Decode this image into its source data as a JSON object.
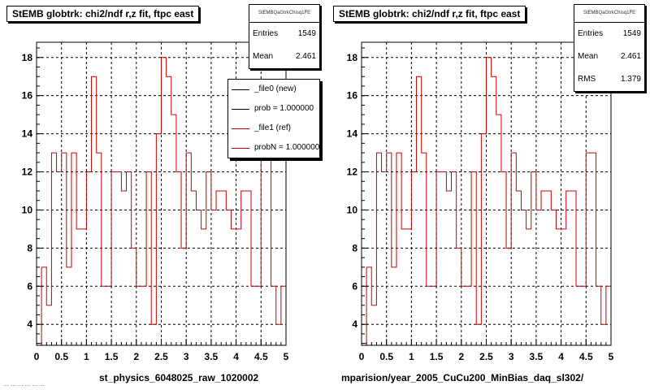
{
  "footer": "... ... ... ... ... ...",
  "chart_data": [
    {
      "type": "line",
      "title": "StEMB globtrk: chi2/ndf r,z fit, ftpc east",
      "xlabel": "st_physics_6048025_raw_1020002",
      "ylabel": "",
      "xlim": [
        0,
        5
      ],
      "ylim": [
        2.9,
        18.8
      ],
      "grid": true,
      "x_ticks": [
        "0",
        "0.5",
        "1",
        "1.5",
        "2",
        "2.5",
        "3",
        "3.5",
        "4",
        "4.5",
        "5"
      ],
      "y_ticks": [
        "4",
        "6",
        "8",
        "10",
        "12",
        "14",
        "16",
        "18"
      ],
      "bin_width": 0.1,
      "x": [
        0.0,
        0.1,
        0.2,
        0.3,
        0.4,
        0.5,
        0.6,
        0.7,
        0.8,
        0.9,
        1.0,
        1.1,
        1.2,
        1.3,
        1.4,
        1.5,
        1.6,
        1.7,
        1.8,
        1.9,
        2.0,
        2.1,
        2.2,
        2.3,
        2.4,
        2.5,
        2.6,
        2.7,
        2.8,
        2.9,
        3.0,
        3.1,
        3.2,
        3.3,
        3.4,
        3.5,
        3.6,
        3.7,
        3.8,
        3.9,
        4.0,
        4.1,
        4.2,
        4.3,
        4.4,
        4.5,
        4.6,
        4.7,
        4.8,
        4.9
      ],
      "series": [
        {
          "color": "#cc0000",
          "values": [
            3,
            7,
            5,
            13,
            12,
            13,
            7,
            13,
            9,
            9,
            12,
            17,
            13,
            6,
            6,
            12,
            12,
            11,
            12,
            8,
            6,
            6,
            12,
            4,
            14,
            18,
            17,
            15,
            12,
            8,
            13,
            11,
            10,
            9,
            12,
            10,
            11,
            11,
            10,
            9,
            9,
            11,
            11,
            6,
            6,
            13,
            13,
            6,
            4,
            6
          ]
        }
      ],
      "stats": {
        "name": "StEMBQaGtrkChisq1FE",
        "rows": [
          {
            "label": "Entries",
            "value": "1549"
          },
          {
            "label": "Mean",
            "value": "2.461"
          }
        ]
      },
      "legend": {
        "placement": "top-right",
        "entries": [
          {
            "label": "_file0 (new)",
            "color": "#000000"
          },
          {
            "label": "prob = 1.000000",
            "color": "#000000"
          },
          {
            "label": "_file1 (ref)",
            "color": "#cc0000"
          },
          {
            "label": "probN = 1.000000",
            "color": "#cc0000"
          }
        ]
      }
    },
    {
      "type": "line",
      "title": "StEMB globtrk: chi2/ndf r,z fit, ftpc east",
      "xlabel": "mparision/year_2005_CuCu200_MinBias_daq_sl302/",
      "ylabel": "",
      "xlim": [
        0,
        5
      ],
      "ylim": [
        2.9,
        18.8
      ],
      "grid": true,
      "x_ticks": [
        "0",
        "0.5",
        "1",
        "1.5",
        "2",
        "2.5",
        "3",
        "3.5",
        "4",
        "4.5",
        "5"
      ],
      "y_ticks": [
        "4",
        "6",
        "8",
        "10",
        "12",
        "14",
        "16",
        "18"
      ],
      "bin_width": 0.1,
      "x": [
        0.0,
        0.1,
        0.2,
        0.3,
        0.4,
        0.5,
        0.6,
        0.7,
        0.8,
        0.9,
        1.0,
        1.1,
        1.2,
        1.3,
        1.4,
        1.5,
        1.6,
        1.7,
        1.8,
        1.9,
        2.0,
        2.1,
        2.2,
        2.3,
        2.4,
        2.5,
        2.6,
        2.7,
        2.8,
        2.9,
        3.0,
        3.1,
        3.2,
        3.3,
        3.4,
        3.5,
        3.6,
        3.7,
        3.8,
        3.9,
        4.0,
        4.1,
        4.2,
        4.3,
        4.4,
        4.5,
        4.6,
        4.7,
        4.8,
        4.9
      ],
      "series": [
        {
          "color": "#cc0000",
          "values": [
            3,
            7,
            5,
            13,
            12,
            13,
            7,
            13,
            9,
            9,
            12,
            17,
            13,
            6,
            6,
            12,
            12,
            11,
            12,
            8,
            6,
            6,
            12,
            4,
            14,
            18,
            17,
            15,
            12,
            8,
            13,
            11,
            10,
            9,
            12,
            10,
            11,
            11,
            10,
            9,
            9,
            11,
            11,
            6,
            6,
            13,
            13,
            6,
            4,
            6
          ]
        }
      ],
      "stats": {
        "name": "StEMBQaGtrkChisq1FE",
        "rows": [
          {
            "label": "Entries",
            "value": "1549"
          },
          {
            "label": "Mean",
            "value": "2.461"
          },
          {
            "label": "RMS",
            "value": "1.379"
          }
        ]
      }
    }
  ]
}
